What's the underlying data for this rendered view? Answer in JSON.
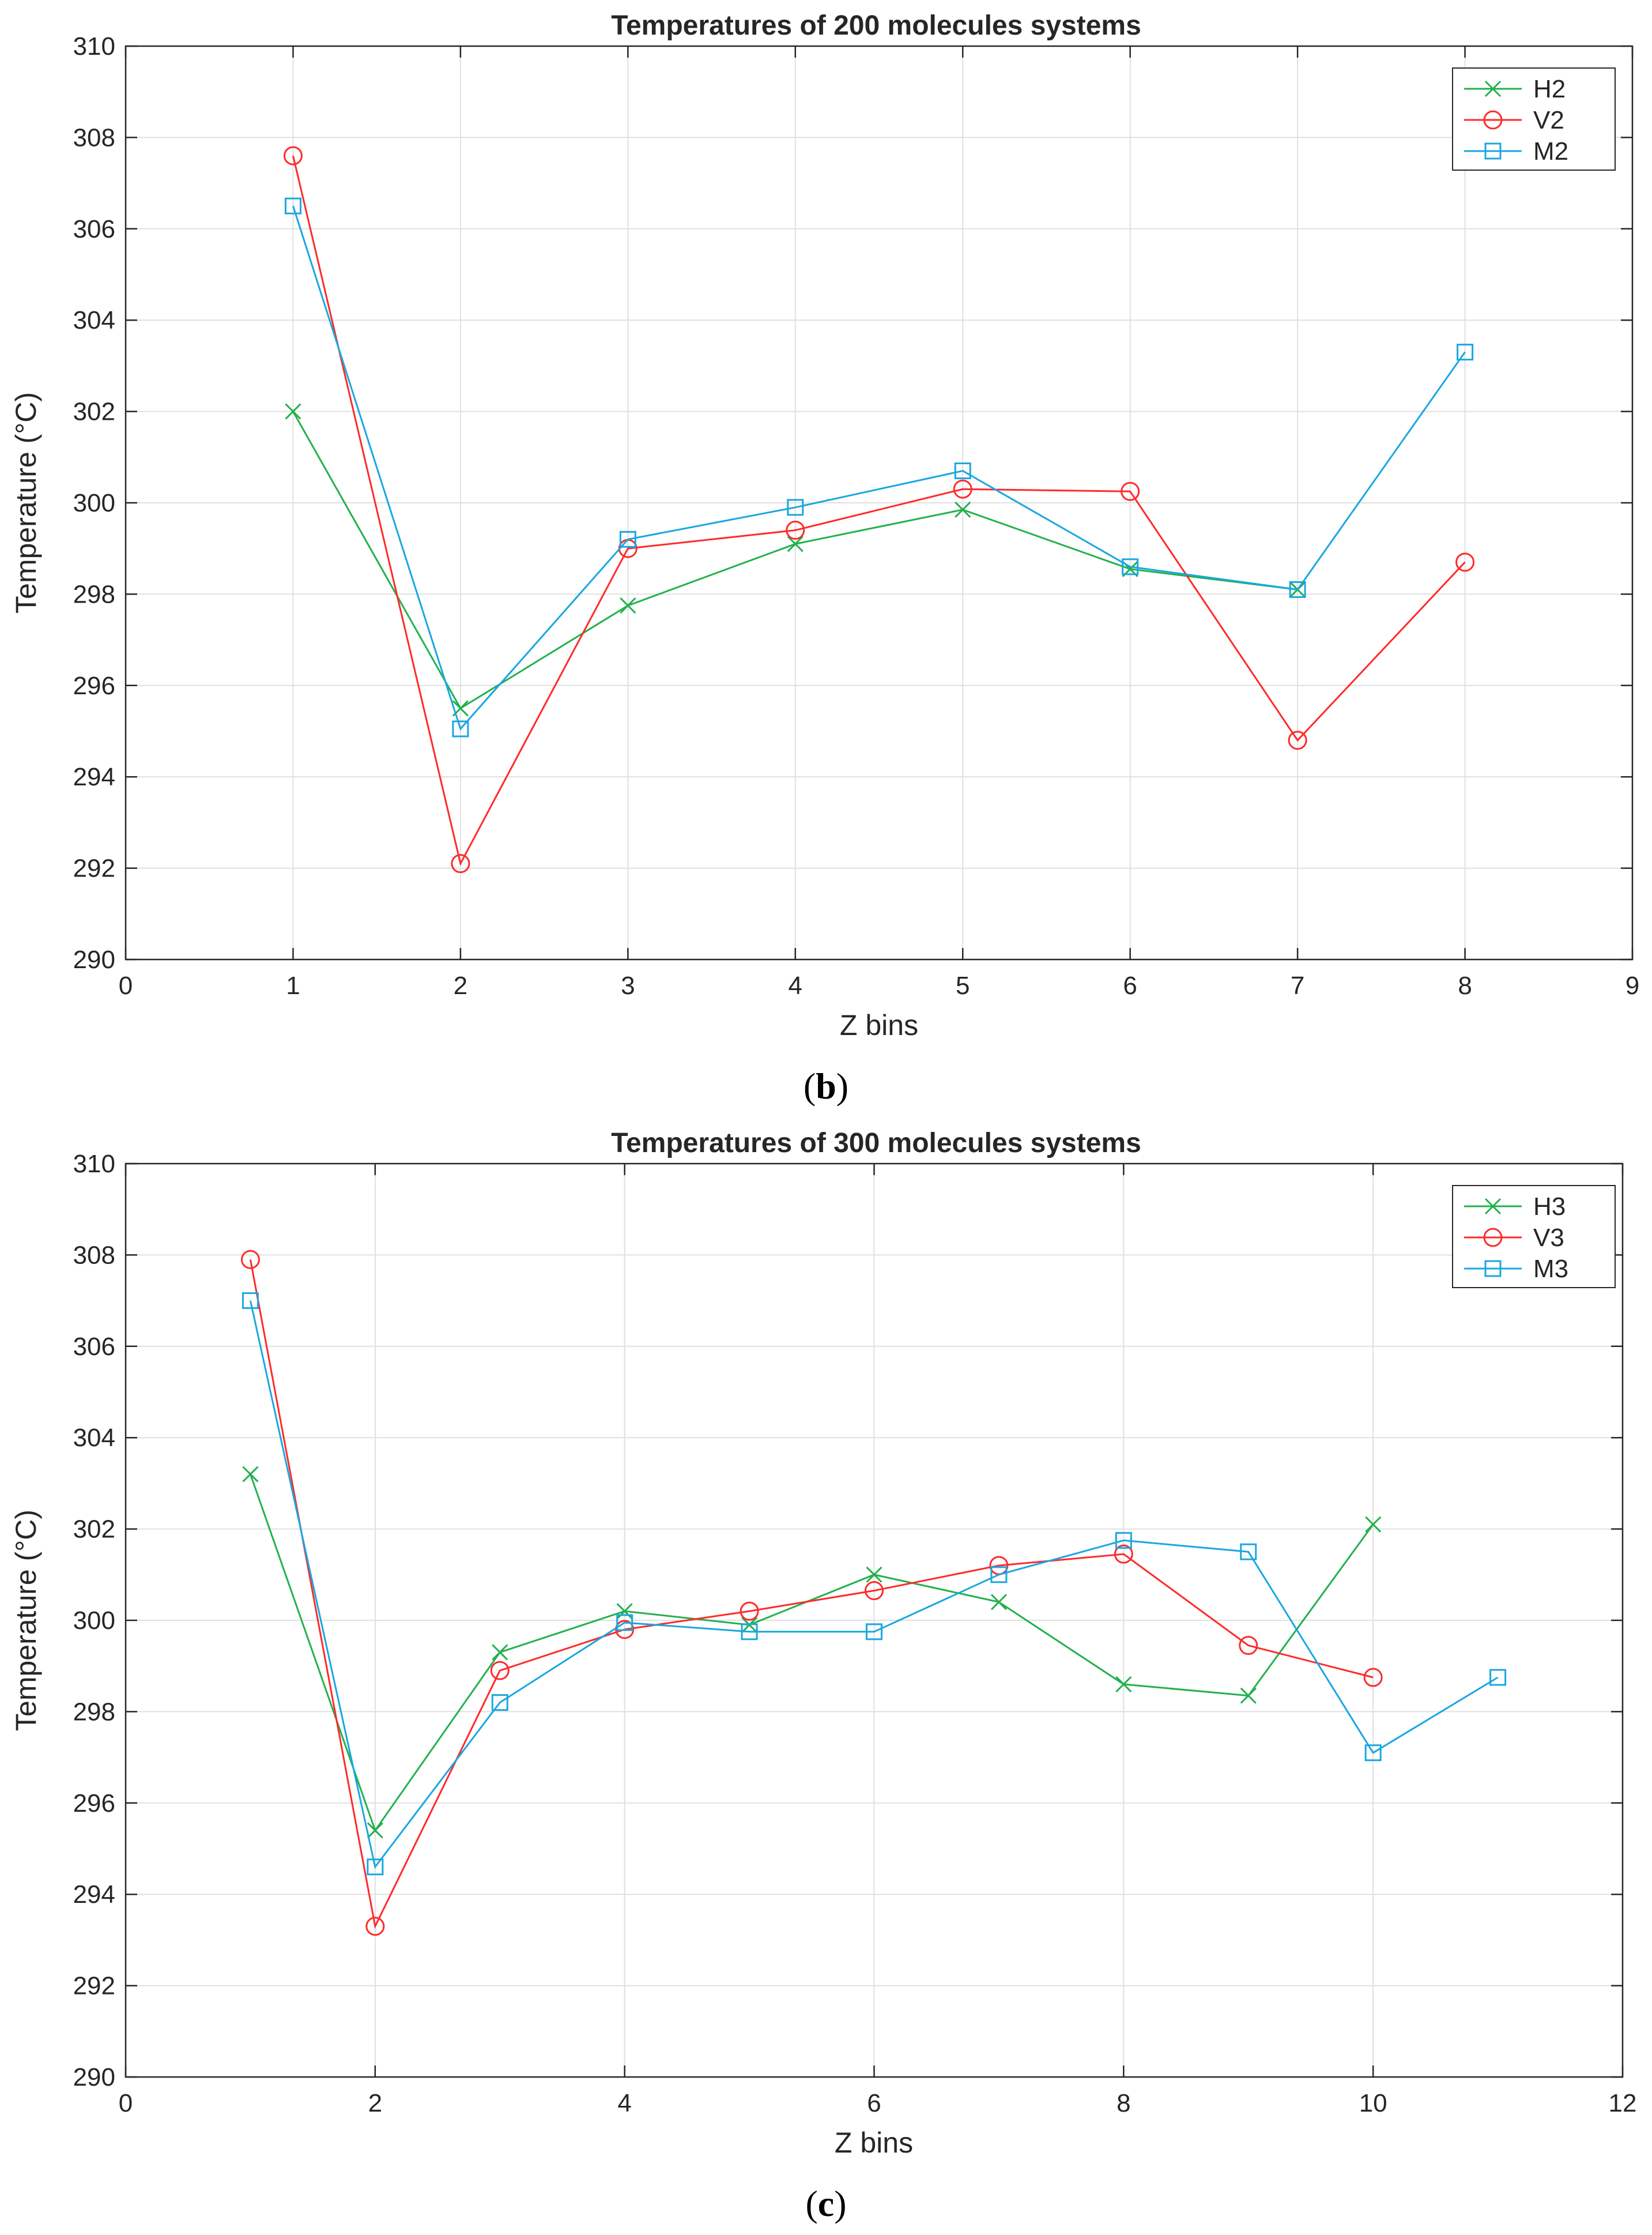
{
  "chart_data": [
    {
      "type": "line",
      "title": "Temperatures of 200 molecules systems",
      "xlabel": "Z bins",
      "ylabel": "Temperature  (°C)",
      "caption_letter": "b",
      "xlim": [
        0,
        9
      ],
      "ylim": [
        290,
        310
      ],
      "xticks": [
        "0",
        "1",
        "2",
        "3",
        "4",
        "5",
        "6",
        "7",
        "8",
        "9"
      ],
      "yticks": [
        "290",
        "292",
        "294",
        "296",
        "298",
        "300",
        "302",
        "304",
        "306",
        "308",
        "310"
      ],
      "grid": true,
      "legend_position": "top-right",
      "series": [
        {
          "name": "H2",
          "color": "#22b14c",
          "marker": "x",
          "x": [
            1,
            2,
            3,
            4,
            5,
            6,
            7
          ],
          "values": [
            302.0,
            295.5,
            297.75,
            299.1,
            299.85,
            298.55,
            298.1
          ]
        },
        {
          "name": "V2",
          "color": "#ff2a2a",
          "marker": "circle",
          "x": [
            1,
            2,
            3,
            4,
            5,
            6,
            7,
            8
          ],
          "values": [
            307.6,
            292.1,
            299.0,
            299.4,
            300.3,
            300.25,
            294.8,
            298.7
          ]
        },
        {
          "name": "M2",
          "color": "#1aa7e0",
          "marker": "square",
          "x": [
            1,
            2,
            3,
            4,
            5,
            6,
            7,
            8
          ],
          "values": [
            306.5,
            295.05,
            299.2,
            299.9,
            300.7,
            298.6,
            298.1,
            303.3
          ]
        }
      ]
    },
    {
      "type": "line",
      "title": "Temperatures of 300 molecules systems",
      "xlabel": "Z bins",
      "ylabel": "Temperature  (°C)",
      "caption_letter": "c",
      "xlim": [
        0,
        12
      ],
      "ylim": [
        290,
        310
      ],
      "xticks": [
        "0",
        "2",
        "4",
        "6",
        "8",
        "10",
        "12"
      ],
      "yticks": [
        "290",
        "292",
        "294",
        "296",
        "298",
        "300",
        "302",
        "304",
        "306",
        "308",
        "310"
      ],
      "grid": true,
      "legend_position": "top-right",
      "series": [
        {
          "name": "H3",
          "color": "#22b14c",
          "marker": "x",
          "x": [
            1,
            2,
            3,
            4,
            5,
            6,
            7,
            8,
            9,
            10
          ],
          "values": [
            303.2,
            295.4,
            299.3,
            300.2,
            299.9,
            301.0,
            300.4,
            298.6,
            298.35,
            302.1
          ]
        },
        {
          "name": "V3",
          "color": "#ff2a2a",
          "marker": "circle",
          "x": [
            1,
            2,
            3,
            4,
            5,
            6,
            7,
            8,
            9,
            10
          ],
          "values": [
            307.9,
            293.3,
            298.9,
            299.8,
            300.2,
            300.65,
            301.2,
            301.45,
            299.45,
            298.75
          ]
        },
        {
          "name": "M3",
          "color": "#1aa7e0",
          "marker": "square",
          "x": [
            1,
            2,
            3,
            4,
            5,
            6,
            7,
            8,
            9,
            10,
            11
          ],
          "values": [
            307.0,
            294.6,
            298.2,
            299.95,
            299.75,
            299.75,
            301.0,
            301.75,
            301.5,
            297.1,
            298.75
          ]
        }
      ]
    }
  ]
}
